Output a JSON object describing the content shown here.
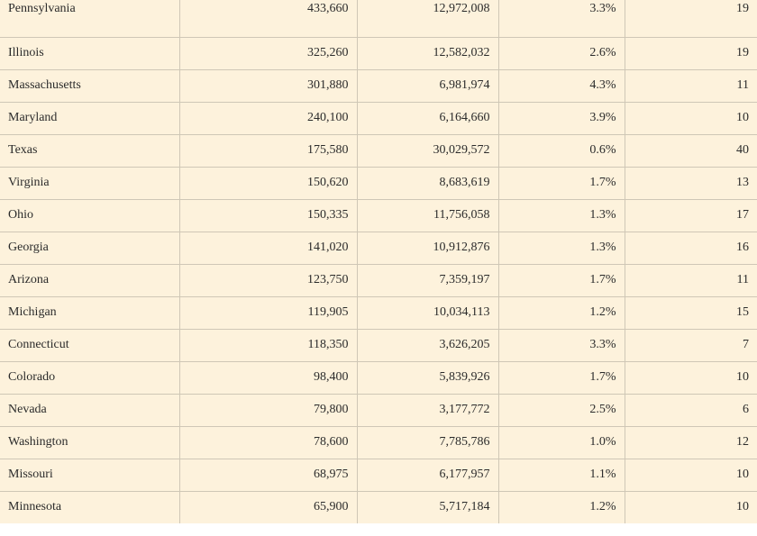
{
  "rows": [
    {
      "state": "Pennsylvania",
      "col2": "433,660",
      "col3": "12,972,008",
      "col4": "3.3%",
      "col5": "19"
    },
    {
      "state": "Illinois",
      "col2": "325,260",
      "col3": "12,582,032",
      "col4": "2.6%",
      "col5": "19"
    },
    {
      "state": "Massachusetts",
      "col2": "301,880",
      "col3": "6,981,974",
      "col4": "4.3%",
      "col5": "11"
    },
    {
      "state": "Maryland",
      "col2": "240,100",
      "col3": "6,164,660",
      "col4": "3.9%",
      "col5": "10"
    },
    {
      "state": "Texas",
      "col2": "175,580",
      "col3": "30,029,572",
      "col4": "0.6%",
      "col5": "40"
    },
    {
      "state": "Virginia",
      "col2": "150,620",
      "col3": "8,683,619",
      "col4": "1.7%",
      "col5": "13"
    },
    {
      "state": "Ohio",
      "col2": "150,335",
      "col3": "11,756,058",
      "col4": "1.3%",
      "col5": "17"
    },
    {
      "state": "Georgia",
      "col2": "141,020",
      "col3": "10,912,876",
      "col4": "1.3%",
      "col5": "16"
    },
    {
      "state": "Arizona",
      "col2": "123,750",
      "col3": "7,359,197",
      "col4": "1.7%",
      "col5": "11"
    },
    {
      "state": "Michigan",
      "col2": "119,905",
      "col3": "10,034,113",
      "col4": "1.2%",
      "col5": "15"
    },
    {
      "state": "Connecticut",
      "col2": "118,350",
      "col3": "3,626,205",
      "col4": "3.3%",
      "col5": "7"
    },
    {
      "state": "Colorado",
      "col2": "98,400",
      "col3": "5,839,926",
      "col4": "1.7%",
      "col5": "10"
    },
    {
      "state": "Nevada",
      "col2": "79,800",
      "col3": "3,177,772",
      "col4": "2.5%",
      "col5": "6"
    },
    {
      "state": "Washington",
      "col2": "78,600",
      "col3": "7,785,786",
      "col4": "1.0%",
      "col5": "12"
    },
    {
      "state": "Missouri",
      "col2": "68,975",
      "col3": "6,177,957",
      "col4": "1.1%",
      "col5": "10"
    },
    {
      "state": "Minnesota",
      "col2": "65,900",
      "col3": "5,717,184",
      "col4": "1.2%",
      "col5": "10"
    }
  ]
}
